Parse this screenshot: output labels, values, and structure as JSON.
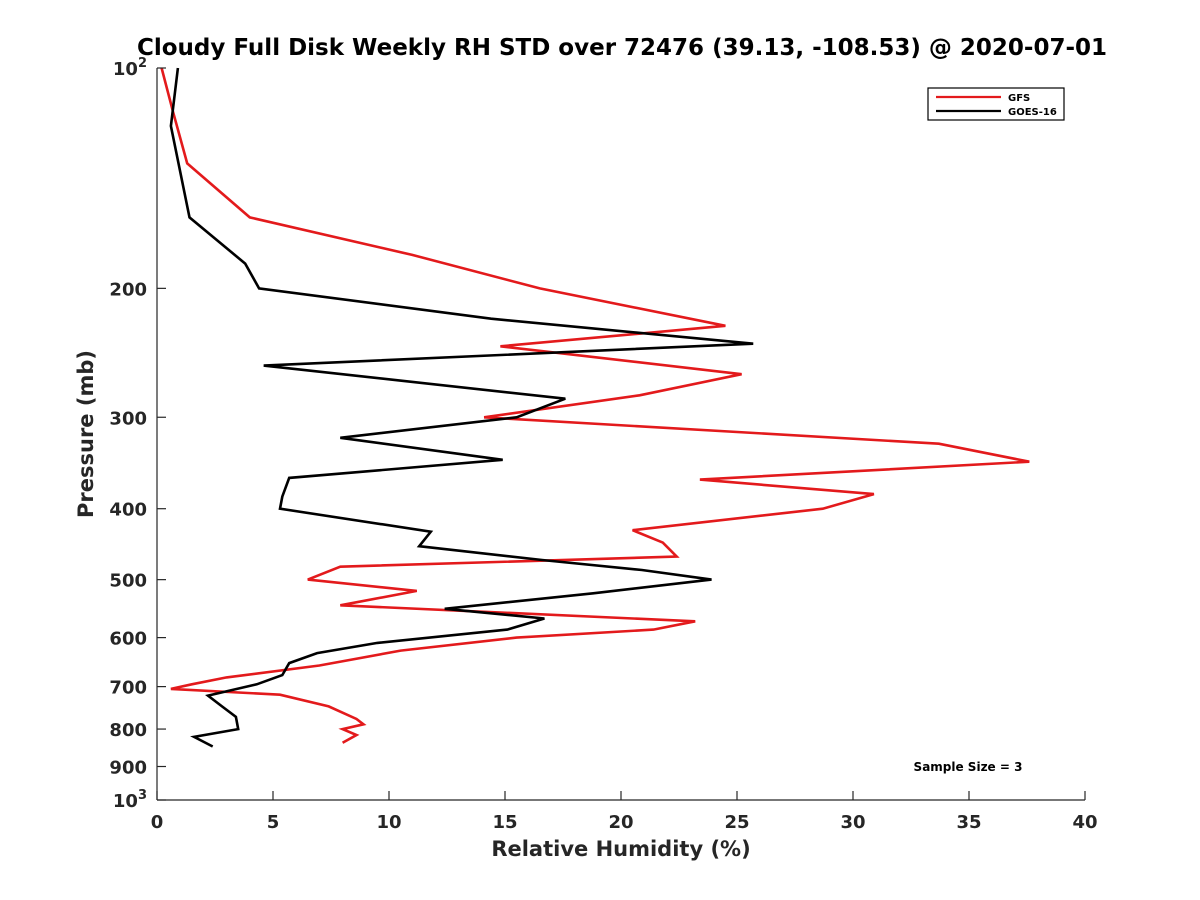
{
  "chart_data": {
    "type": "line",
    "title": "Cloudy Full Disk Weekly RH STD over 72476 (39.13, -108.53) @ 2020-07-01",
    "xlabel": "Relative Humidity (%)",
    "ylabel": "Pressure (mb)",
    "xlim": [
      0,
      40
    ],
    "ylim": [
      100,
      1000
    ],
    "yscale": "log",
    "y_reversed": true,
    "grid": false,
    "legend_position": "top-right",
    "annotation": "Sample Size = 3",
    "x_ticks": [
      0,
      5,
      10,
      15,
      20,
      25,
      30,
      35,
      40
    ],
    "x_tick_labels": [
      "0",
      "5",
      "10",
      "15",
      "20",
      "25",
      "30",
      "35",
      "40"
    ],
    "y_ticks": [
      100,
      200,
      300,
      400,
      500,
      600,
      700,
      800,
      900,
      1000
    ],
    "y_tick_labels": [
      {
        "base": "10",
        "exp": "2"
      },
      {
        "base": "200",
        "exp": ""
      },
      {
        "base": "300",
        "exp": ""
      },
      {
        "base": "400",
        "exp": ""
      },
      {
        "base": "500",
        "exp": ""
      },
      {
        "base": "600",
        "exp": ""
      },
      {
        "base": "700",
        "exp": ""
      },
      {
        "base": "800",
        "exp": ""
      },
      {
        "base": "900",
        "exp": ""
      },
      {
        "base": "10",
        "exp": "3"
      }
    ],
    "series": [
      {
        "name": "GFS",
        "color": "#e31a1c",
        "points": [
          [
            0.2,
            100
          ],
          [
            0.7,
            115
          ],
          [
            1.3,
            135
          ],
          [
            4.0,
            160
          ],
          [
            11.0,
            180
          ],
          [
            16.5,
            200
          ],
          [
            24.5,
            225
          ],
          [
            14.8,
            240
          ],
          [
            25.2,
            262
          ],
          [
            20.8,
            280
          ],
          [
            14.1,
            300
          ],
          [
            33.7,
            326
          ],
          [
            37.6,
            345
          ],
          [
            23.4,
            365
          ],
          [
            30.9,
            382
          ],
          [
            28.7,
            400
          ],
          [
            20.5,
            428
          ],
          [
            21.8,
            445
          ],
          [
            22.4,
            465
          ],
          [
            7.9,
            480
          ],
          [
            6.5,
            500
          ],
          [
            11.2,
            518
          ],
          [
            7.9,
            542
          ],
          [
            23.2,
            570
          ],
          [
            21.4,
            585
          ],
          [
            15.5,
            600
          ],
          [
            10.5,
            625
          ],
          [
            7.0,
            655
          ],
          [
            3.0,
            680
          ],
          [
            1.5,
            695
          ],
          [
            0.6,
            705
          ],
          [
            5.3,
            718
          ],
          [
            7.4,
            745
          ],
          [
            8.6,
            775
          ],
          [
            8.9,
            788
          ],
          [
            8.0,
            800
          ],
          [
            8.6,
            815
          ],
          [
            8.0,
            835
          ]
        ]
      },
      {
        "name": "GOES-16",
        "color": "#000000",
        "points": [
          [
            0.9,
            100
          ],
          [
            0.6,
            120
          ],
          [
            1.4,
            160
          ],
          [
            3.8,
            185
          ],
          [
            4.4,
            200
          ],
          [
            14.4,
            220
          ],
          [
            25.7,
            238
          ],
          [
            4.6,
            255
          ],
          [
            17.6,
            283
          ],
          [
            15.5,
            300
          ],
          [
            7.9,
            320
          ],
          [
            14.9,
            343
          ],
          [
            5.7,
            363
          ],
          [
            5.4,
            385
          ],
          [
            5.3,
            400
          ],
          [
            11.8,
            430
          ],
          [
            11.3,
            450
          ],
          [
            16.6,
            470
          ],
          [
            20.9,
            485
          ],
          [
            23.9,
            500
          ],
          [
            18.8,
            522
          ],
          [
            12.4,
            548
          ],
          [
            16.7,
            565
          ],
          [
            15.1,
            585
          ],
          [
            9.5,
            610
          ],
          [
            6.9,
            630
          ],
          [
            5.7,
            650
          ],
          [
            5.4,
            675
          ],
          [
            4.3,
            695
          ],
          [
            2.2,
            720
          ],
          [
            2.8,
            745
          ],
          [
            3.4,
            770
          ],
          [
            3.5,
            800
          ],
          [
            1.6,
            820
          ],
          [
            2.4,
            845
          ]
        ]
      }
    ]
  }
}
